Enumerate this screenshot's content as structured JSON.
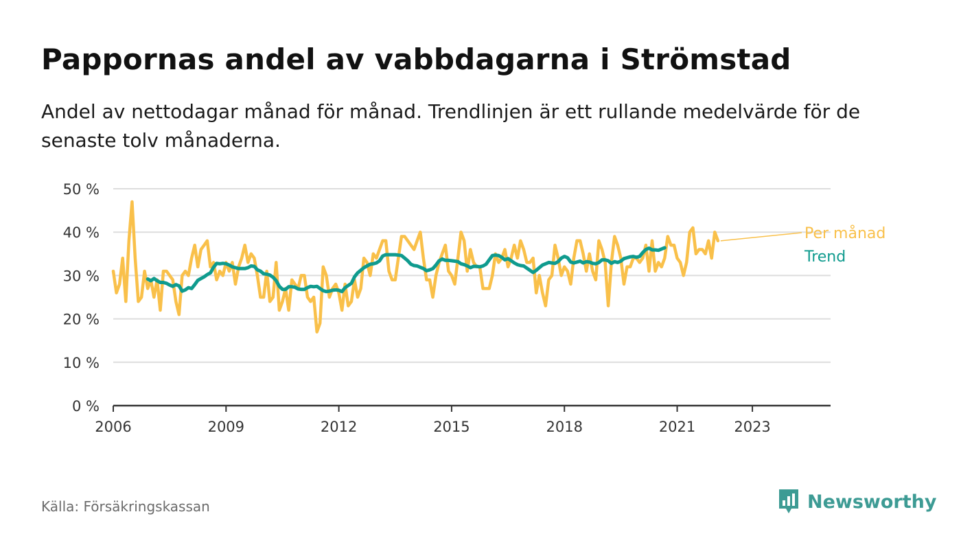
{
  "title": "Pappornas andel av vabbdagarna i Strömstad",
  "subtitle": "Andel av nettodagar månad för månad. Trendlinjen är ett rullande medelvärde för de senaste tolv månaderna.",
  "source": "Källa: Försäkringskassan",
  "brand": {
    "name": "Newsworthy",
    "icon": "newsworthy-logo-icon"
  },
  "colors": {
    "monthly": "#f9c04a",
    "trend": "#0f9b8e",
    "grid": "#dddddd",
    "axis": "#333333"
  },
  "chart_data": {
    "type": "line",
    "title": "Pappornas andel av vabbdagarna i Strömstad",
    "ylim": [
      0,
      50
    ],
    "xlim": [
      2006,
      2025.08
    ],
    "y_ticks": [
      0,
      10,
      20,
      30,
      40,
      50
    ],
    "y_tick_labels": [
      "0 %",
      "10 %",
      "20 %",
      "30 %",
      "40 %",
      "50 %"
    ],
    "x_ticks": [
      2006,
      2009,
      2012,
      2015,
      2018,
      2021,
      2023
    ],
    "x_tick_labels": [
      "2006",
      "2009",
      "2012",
      "2015",
      "2018",
      "2021",
      "2023"
    ],
    "grid": true,
    "legend": "right-end-labels",
    "series": [
      {
        "name": "Per månad",
        "color": "#f9c04a",
        "start": 2006.0,
        "step_months": 1,
        "values": [
          31,
          26,
          28,
          34,
          24,
          38,
          47,
          34,
          24,
          25,
          31,
          27,
          29,
          25,
          29,
          22,
          31,
          31,
          30,
          29,
          24,
          21,
          30,
          31,
          30,
          34,
          37,
          32,
          36,
          37,
          38,
          32,
          33,
          29,
          31,
          30,
          33,
          31,
          33,
          28,
          32,
          34,
          37,
          33,
          35,
          34,
          30,
          25,
          25,
          31,
          24,
          25,
          33,
          22,
          24,
          27,
          22,
          29,
          28,
          27,
          30,
          30,
          25,
          24,
          25,
          17,
          19,
          32,
          30,
          25,
          27,
          28,
          26,
          22,
          28,
          23,
          24,
          29,
          25,
          27,
          34,
          33,
          30,
          35,
          34,
          36,
          38,
          38,
          31,
          29,
          29,
          34,
          39,
          39,
          38,
          37,
          36,
          38,
          40,
          34,
          29,
          29,
          25,
          30,
          33,
          35,
          37,
          31,
          30,
          28,
          34,
          40,
          38,
          31,
          36,
          33,
          32,
          32,
          27,
          27,
          27,
          30,
          35,
          33,
          34,
          36,
          32,
          34,
          37,
          34,
          38,
          36,
          33,
          33,
          34,
          26,
          30,
          26,
          23,
          29,
          30,
          37,
          34,
          30,
          32,
          31,
          28,
          34,
          38,
          38,
          35,
          31,
          35,
          31,
          29,
          38,
          36,
          33,
          23,
          33,
          39,
          37,
          34,
          28,
          32,
          32,
          34,
          34,
          33,
          34,
          37,
          31,
          38,
          31,
          33,
          32,
          34,
          39,
          37,
          37,
          34,
          33,
          30,
          33,
          40,
          41,
          35,
          36,
          36,
          35,
          38,
          34,
          40,
          38
        ]
      },
      {
        "name": "Trend",
        "color": "#0f9b8e",
        "start": 2006.917,
        "step_months": 1,
        "values": [
          29.2,
          28.8,
          29.3,
          28.8,
          28.4,
          28.4,
          28.2,
          27.8,
          27.5,
          27.9,
          27.6,
          26.4,
          26.7,
          27.2,
          27.0,
          27.9,
          28.9,
          29.3,
          29.7,
          30.2,
          30.6,
          31.9,
          32.8,
          32.7,
          32.8,
          32.7,
          32.4,
          32.0,
          31.8,
          31.6,
          31.6,
          31.6,
          31.8,
          32.2,
          32.1,
          31.3,
          31.0,
          30.4,
          30.3,
          30.1,
          29.6,
          28.8,
          27.5,
          26.8,
          26.8,
          27.4,
          27.4,
          27.3,
          26.9,
          26.8,
          26.8,
          27.2,
          27.5,
          27.4,
          27.5,
          27.0,
          26.5,
          26.3,
          26.4,
          26.6,
          26.7,
          26.6,
          26.3,
          27.2,
          27.7,
          28.2,
          29.7,
          30.6,
          31.2,
          31.8,
          32.2,
          32.6,
          32.7,
          32.9,
          33.4,
          34.5,
          34.8,
          34.8,
          34.8,
          34.8,
          34.7,
          34.6,
          34.0,
          33.4,
          32.6,
          32.3,
          32.2,
          31.9,
          31.6,
          31.1,
          31.3,
          31.6,
          32.4,
          33.4,
          33.8,
          33.5,
          33.5,
          33.4,
          33.3,
          33.2,
          32.7,
          32.5,
          32.2,
          31.8,
          32.1,
          32.1,
          32.0,
          32.2,
          32.6,
          33.6,
          34.6,
          34.7,
          34.6,
          34.2,
          33.6,
          33.9,
          33.4,
          32.9,
          32.5,
          32.3,
          32.2,
          31.7,
          31.2,
          30.7,
          31.2,
          31.8,
          32.4,
          32.7,
          33.0,
          32.9,
          32.8,
          33.2,
          34.0,
          34.4,
          34.1,
          33.1,
          32.9,
          33.1,
          33.3,
          32.9,
          33.2,
          33.1,
          32.8,
          32.7,
          33.0,
          33.6,
          33.6,
          33.4,
          32.8,
          33.2,
          33.0,
          33.3,
          33.9,
          34.1,
          34.3,
          34.4,
          34.2,
          34.4,
          35.3,
          36.0,
          36.3,
          35.9,
          35.9,
          35.8,
          36.1,
          36.4
        ]
      }
    ]
  }
}
